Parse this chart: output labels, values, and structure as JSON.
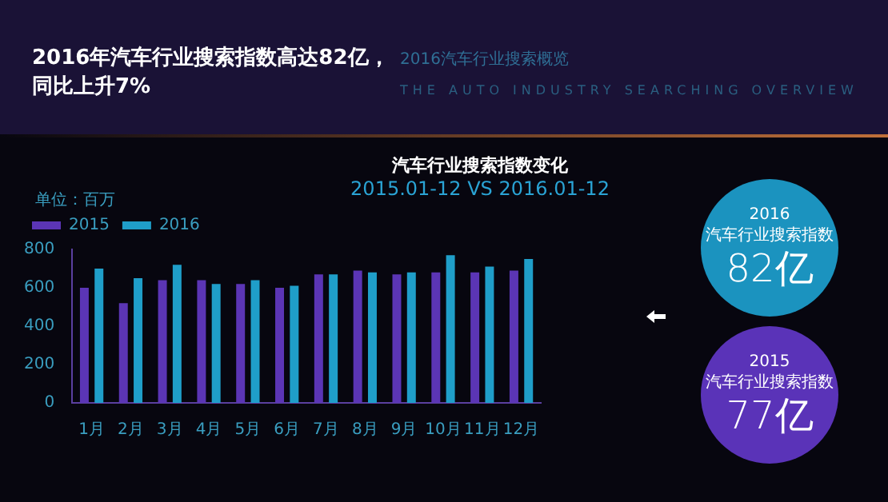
{
  "chart_data": {
    "type": "bar",
    "title": "汽车行业搜索指数变化",
    "subtitle": "2015.01-12 VS 2016.01-12",
    "ylabel": "单位：百万",
    "annotations": [
      "2016年汽车行业搜索指数高达82亿，同比上升7%",
      "2016汽车行业搜索概览",
      "THE AUTO INDUSTRY SEARCHING OVERVIEW",
      "2016 汽车行业搜索指数 82亿",
      "2015 汽车行业搜索指数 77亿"
    ],
    "categories": [
      "1月",
      "2月",
      "3月",
      "4月",
      "5月",
      "6月",
      "7月",
      "8月",
      "9月",
      "10月",
      "11月",
      "12月"
    ],
    "series": [
      {
        "name": "2015",
        "color": "#5b35b5",
        "values": [
          600,
          520,
          640,
          640,
          620,
          600,
          670,
          690,
          670,
          680,
          680,
          690
        ]
      },
      {
        "name": "2016",
        "color": "#1f9ec9",
        "values": [
          700,
          650,
          720,
          620,
          640,
          610,
          670,
          680,
          680,
          770,
          710,
          750
        ]
      }
    ],
    "ylim": [
      0,
      800
    ],
    "yticks": [
      0,
      200,
      400,
      600,
      800
    ],
    "grid": false,
    "legend": "top left"
  }
}
